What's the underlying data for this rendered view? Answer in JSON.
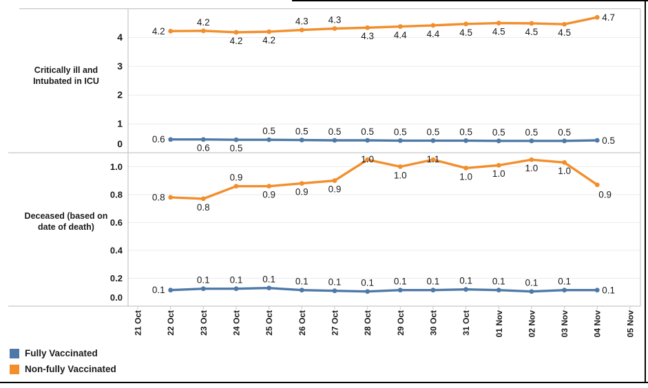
{
  "chart_data": {
    "type": "line",
    "title": "",
    "xlabel": "",
    "ylabel": "",
    "grid": true,
    "legend_position": "bottom-left",
    "x_label_rotation": -90,
    "categories": [
      "21 Oct",
      "22 Oct",
      "23 Oct",
      "24 Oct",
      "25 Oct",
      "26 Oct",
      "27 Oct",
      "28 Oct",
      "29 Oct",
      "30 Oct",
      "31 Oct",
      "01 Nov",
      "02 Nov",
      "03 Nov",
      "04 Nov",
      "05 Nov"
    ],
    "data_start_index": 1,
    "legend": [
      {
        "label": "Fully Vaccinated",
        "color": "#4E79A7"
      },
      {
        "label": "Non-fully Vaccinated",
        "color": "#F28E2B"
      }
    ],
    "panels": [
      {
        "row_title": "Critically ill and Intubated in ICU",
        "row_title_lines": [
          "Critically ill and",
          "Intubated in ICU"
        ],
        "ylim": [
          0,
          5
        ],
        "y_ticks": [
          {
            "label": "0",
            "value": 0
          },
          {
            "label": "1",
            "value": 1
          },
          {
            "label": "2",
            "value": 2
          },
          {
            "label": "3",
            "value": 3
          },
          {
            "label": "4",
            "value": 4
          }
        ],
        "series": [
          {
            "name": "Non-fully Vaccinated",
            "color": "#F28E2B",
            "values": [
              4.2,
              4.2,
              4.2,
              4.2,
              4.3,
              4.3,
              4.3,
              4.4,
              4.4,
              4.5,
              4.5,
              4.5,
              4.5,
              4.7
            ],
            "labels": [
              "4.2",
              "4.2",
              "4.2",
              "4.2",
              "4.3",
              "4.3",
              "4.3",
              "4.4",
              "4.4",
              "4.5",
              "4.5",
              "4.5",
              "4.5",
              "4.7"
            ],
            "y_plot": [
              4.22,
              4.23,
              4.18,
              4.2,
              4.26,
              4.31,
              4.34,
              4.38,
              4.42,
              4.47,
              4.5,
              4.49,
              4.46,
              4.7
            ],
            "label_pos": [
              "left",
              "above",
              "below",
              "below",
              "above",
              "above",
              "below",
              "below",
              "below",
              "below",
              "below",
              "below",
              "below",
              "right"
            ]
          },
          {
            "name": "Fully Vaccinated",
            "color": "#4E79A7",
            "values": [
              0.6,
              0.6,
              0.5,
              0.5,
              0.5,
              0.5,
              0.5,
              0.5,
              0.5,
              0.5,
              0.5,
              0.5,
              0.5,
              0.5
            ],
            "labels": [
              "0.6",
              "0.6",
              "0.5",
              "0.5",
              "0.5",
              "0.5",
              "0.5",
              "0.5",
              "0.5",
              "0.5",
              "0.5",
              "0.5",
              "0.5",
              "0.5"
            ],
            "y_plot": [
              0.46,
              0.46,
              0.45,
              0.45,
              0.44,
              0.43,
              0.43,
              0.42,
              0.42,
              0.42,
              0.41,
              0.41,
              0.41,
              0.43
            ],
            "label_pos": [
              "left",
              "below",
              "below",
              "above",
              "above",
              "above",
              "above",
              "above",
              "above",
              "above",
              "above",
              "above",
              "above",
              "right"
            ]
          }
        ]
      },
      {
        "row_title": "Deceased (based on date of death)",
        "row_title_lines": [
          "Deceased (based on",
          "date of death)"
        ],
        "ylim": [
          0,
          1.1
        ],
        "y_ticks": [
          {
            "label": "0.0",
            "value": 0.0
          },
          {
            "label": "0.2",
            "value": 0.2
          },
          {
            "label": "0.4",
            "value": 0.4
          },
          {
            "label": "0.6",
            "value": 0.6
          },
          {
            "label": "0.8",
            "value": 0.8
          },
          {
            "label": "1.0",
            "value": 1.0
          }
        ],
        "series": [
          {
            "name": "Non-fully Vaccinated",
            "color": "#F28E2B",
            "values": [
              0.8,
              0.8,
              0.9,
              0.9,
              0.9,
              0.9,
              1.0,
              1.0,
              1.1,
              1.0,
              1.0,
              1.0,
              1.0,
              0.9
            ],
            "labels": [
              "0.8",
              "0.8",
              "0.9",
              "0.9",
              "0.9",
              "0.9",
              "1.0",
              "1.0",
              "1.1",
              "1.0",
              "1.0",
              "1.0",
              "1.0",
              "0.9"
            ],
            "y_plot": [
              0.78,
              0.77,
              0.86,
              0.86,
              0.88,
              0.9,
              1.05,
              1.0,
              1.05,
              0.99,
              1.01,
              1.05,
              1.03,
              0.87
            ],
            "label_pos": [
              "left",
              "below",
              "above",
              "below",
              "below",
              "below",
              "on",
              "below",
              "on",
              "below",
              "below",
              "below",
              "below",
              "below-right"
            ]
          },
          {
            "name": "Fully Vaccinated",
            "color": "#4E79A7",
            "values": [
              0.1,
              0.1,
              0.1,
              0.1,
              0.1,
              0.1,
              0.1,
              0.1,
              0.1,
              0.1,
              0.1,
              0.1,
              0.1,
              0.1
            ],
            "labels": [
              "0.1",
              "0.1",
              "0.1",
              "0.1",
              "0.1",
              "0.1",
              "0.1",
              "0.1",
              "0.1",
              "0.1",
              "0.1",
              "0.1",
              "0.1",
              "0.1"
            ],
            "y_plot": [
              0.115,
              0.125,
              0.125,
              0.13,
              0.115,
              0.11,
              0.105,
              0.115,
              0.115,
              0.12,
              0.115,
              0.105,
              0.115,
              0.115
            ],
            "label_pos": [
              "left",
              "above",
              "above",
              "above",
              "above",
              "above",
              "above",
              "above",
              "above",
              "above",
              "above",
              "above",
              "above",
              "right"
            ]
          }
        ]
      }
    ]
  },
  "colors": {
    "grid": "#ebebeb",
    "axis": "#c6c6c6",
    "text": "#1a1a1a",
    "frame": "#000000"
  }
}
